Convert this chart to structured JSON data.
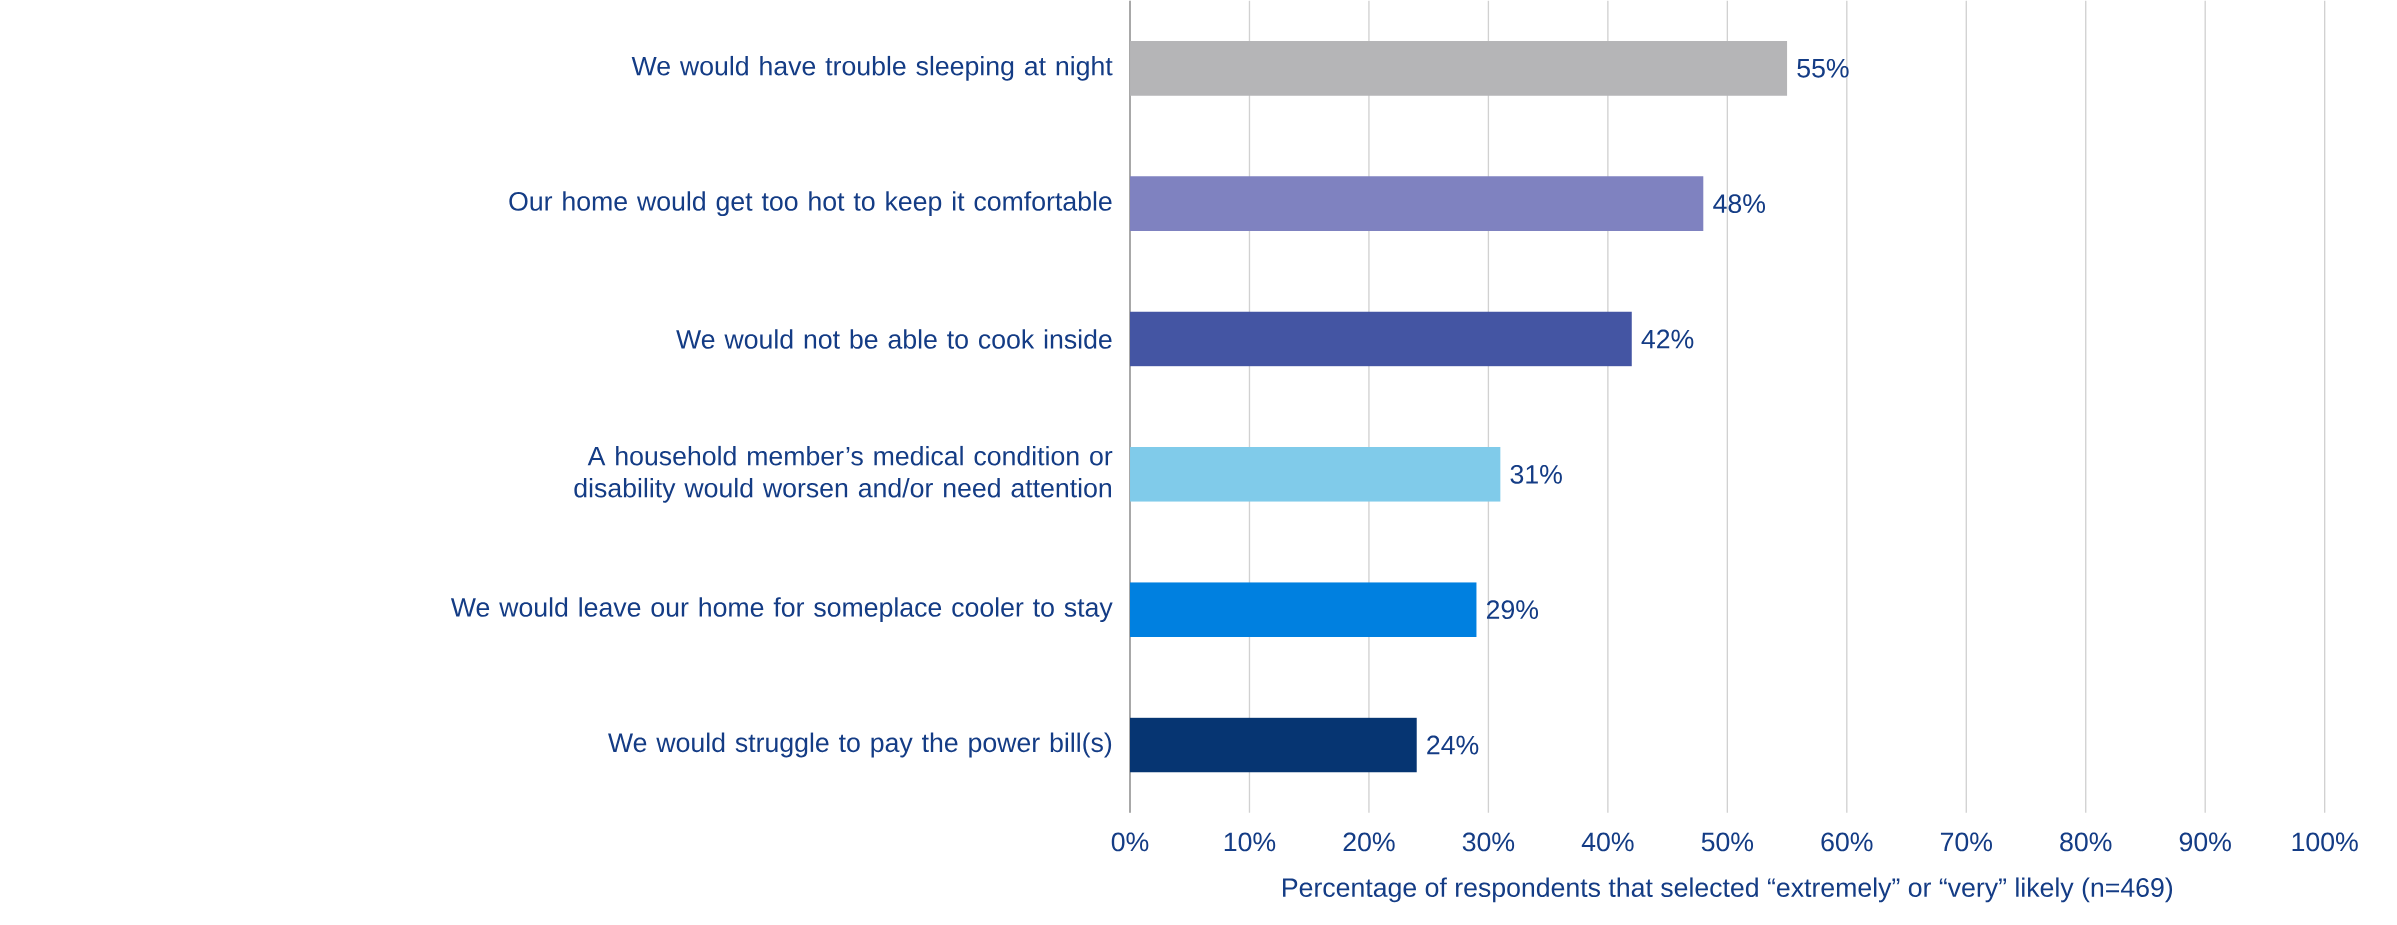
{
  "chart_data": {
    "type": "bar",
    "orientation": "horizontal",
    "xlabel": "Percentage of respondents that selected “extremely” or “very” likely (n=469)",
    "categories": [
      "We would have trouble sleeping at night",
      "Our home would get too hot to keep it comfortable",
      "We would not be able to cook inside",
      "A household member’s medical condition or disability would worsen and/or need attention",
      "We would leave our home for  someplace cooler to stay",
      "We would struggle to pay the power bill(s)"
    ],
    "values": [
      55,
      48,
      42,
      31,
      29,
      24
    ],
    "colors": [
      "#b5b5b7",
      "#7f82c0",
      "#4455a3",
      "#80cbea",
      "#0080e0",
      "#063572"
    ],
    "value_labels": [
      "55%",
      "48%",
      "42%",
      "31%",
      "29%",
      "24%"
    ],
    "xlim": [
      0,
      100
    ],
    "xticks": [
      {
        "value": 0,
        "label": "0%"
      },
      {
        "value": 10,
        "label": "10%"
      },
      {
        "value": 20,
        "label": "20%"
      },
      {
        "value": 30,
        "label": "30%"
      },
      {
        "value": 40,
        "label": "40%"
      },
      {
        "value": 50,
        "label": "50%"
      },
      {
        "value": 60,
        "label": "60%"
      },
      {
        "value": 70,
        "label": "70%"
      },
      {
        "value": 80,
        "label": "80%"
      },
      {
        "value": 90,
        "label": "90%"
      },
      {
        "value": 100,
        "label": "100%"
      }
    ],
    "grid": "x"
  }
}
